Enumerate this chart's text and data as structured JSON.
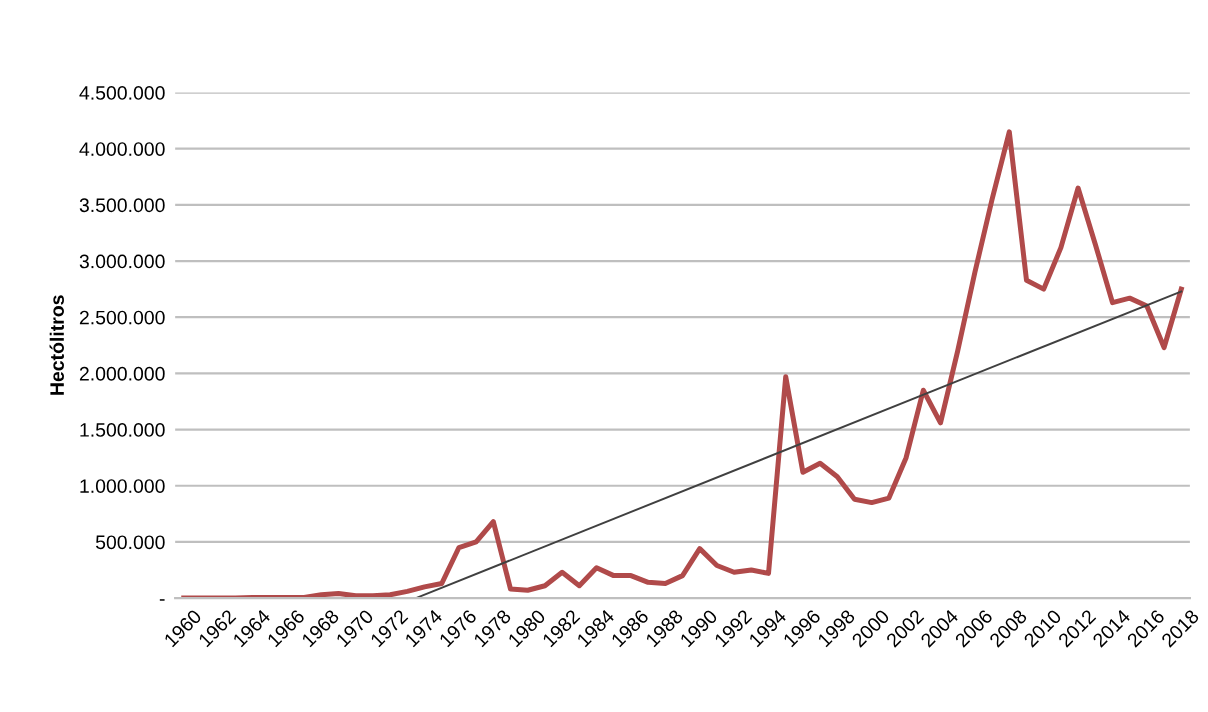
{
  "chart_data": {
    "type": "line",
    "ylabel": "Hectólitros",
    "x": [
      1960,
      1961,
      1962,
      1963,
      1964,
      1965,
      1966,
      1967,
      1968,
      1969,
      1970,
      1971,
      1972,
      1973,
      1974,
      1975,
      1976,
      1977,
      1978,
      1979,
      1980,
      1981,
      1982,
      1983,
      1984,
      1985,
      1986,
      1987,
      1988,
      1989,
      1990,
      1991,
      1992,
      1993,
      1994,
      1995,
      1996,
      1997,
      1998,
      1999,
      2000,
      2001,
      2002,
      2003,
      2004,
      2005,
      2006,
      2007,
      2008,
      2009,
      2010,
      2011,
      2012,
      2013,
      2014,
      2015,
      2016,
      2017,
      2018
    ],
    "series": [
      {
        "color": "#b04a4a",
        "values": [
          0,
          0,
          0,
          0,
          5000,
          5000,
          5000,
          5000,
          30000,
          40000,
          20000,
          20000,
          30000,
          60000,
          100000,
          130000,
          450000,
          500000,
          680000,
          80000,
          70000,
          110000,
          230000,
          110000,
          270000,
          200000,
          200000,
          140000,
          130000,
          200000,
          440000,
          290000,
          230000,
          250000,
          220000,
          1970000,
          1120000,
          1200000,
          1080000,
          880000,
          850000,
          890000,
          1250000,
          1850000,
          1560000,
          2200000,
          2900000,
          3550000,
          4150000,
          2830000,
          2750000,
          3120000,
          3650000,
          3150000,
          2630000,
          2670000,
          2600000,
          2230000,
          2750000
        ]
      },
      {
        "type": "line",
        "color": "#404040",
        "x": [
          1973.5,
          2018
        ],
        "values": [
          0,
          2730000
        ]
      }
    ],
    "xlim": [
      1959.5,
      2018.5
    ],
    "xticks": [
      1960,
      1962,
      1964,
      1966,
      1968,
      1970,
      1972,
      1974,
      1976,
      1978,
      1980,
      1982,
      1984,
      1986,
      1988,
      1990,
      1992,
      1994,
      1996,
      1998,
      2000,
      2002,
      2004,
      2006,
      2008,
      2010,
      2012,
      2014,
      2016,
      2018
    ],
    "ylim": [
      0,
      4500000
    ],
    "yticks": [
      {
        "value": 0,
        "label": "-"
      },
      {
        "value": 500000,
        "label": "500.000"
      },
      {
        "value": 1000000,
        "label": "1.000.000"
      },
      {
        "value": 1500000,
        "label": "1.500.000"
      },
      {
        "value": 2000000,
        "label": "2.000.000"
      },
      {
        "value": 2500000,
        "label": "2.500.000"
      },
      {
        "value": 3000000,
        "label": "3.000.000"
      },
      {
        "value": 3500000,
        "label": "3.500.000"
      },
      {
        "value": 4000000,
        "label": "4.000.000"
      },
      {
        "value": 4500000,
        "label": "4.500.000"
      }
    ],
    "grid": "y"
  }
}
